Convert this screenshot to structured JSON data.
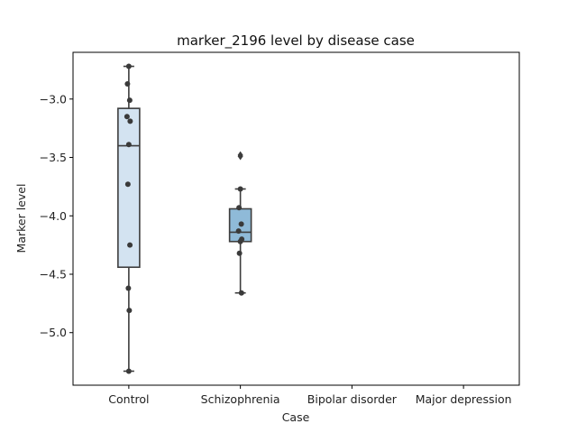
{
  "chart_data": {
    "type": "box",
    "title": "marker_2196 level by disease case",
    "xlabel": "Case",
    "ylabel": "Marker level",
    "ylim": [
      -5.45,
      -2.6
    ],
    "yticks": [
      -3.0,
      -3.5,
      -4.0,
      -4.5,
      -5.0
    ],
    "ytick_labels": [
      "−3.0",
      "−3.5",
      "−4.0",
      "−4.5",
      "−5.0"
    ],
    "categories": [
      "Control",
      "Schizophrenia",
      "Bipolar disorder",
      "Major depression"
    ],
    "boxes": [
      {
        "category": "Control",
        "color": "#d3e3f1",
        "whisker_low": -5.33,
        "q1": -4.44,
        "median": -3.4,
        "q3": -3.08,
        "whisker_high": -2.72,
        "outliers": [],
        "points": [
          -2.72,
          -2.87,
          -3.01,
          -3.15,
          -3.19,
          -3.39,
          -3.73,
          -4.25,
          -4.62,
          -4.81,
          -5.33
        ]
      },
      {
        "category": "Schizophrenia",
        "color": "#8fbad8",
        "whisker_low": -4.66,
        "q1": -4.22,
        "median": -4.14,
        "q3": -3.94,
        "whisker_high": -3.77,
        "outliers": [
          -3.48,
          -3.49
        ],
        "points": [
          -3.77,
          -3.93,
          -4.07,
          -4.13,
          -4.2,
          -4.22,
          -4.32,
          -4.66
        ]
      },
      {
        "category": "Bipolar disorder",
        "color": "#5a9bc9",
        "points": []
      },
      {
        "category": "Major depression",
        "color": "#2b6fb0",
        "points": []
      }
    ]
  }
}
